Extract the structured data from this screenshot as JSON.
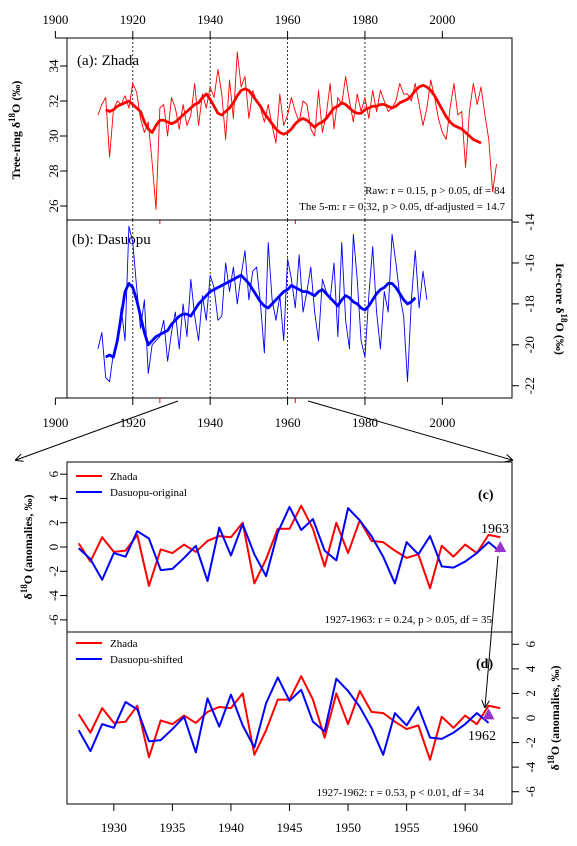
{
  "colors": {
    "zhada": "#ff0000",
    "dasuopu": "#0000ff",
    "marker": "#9933cc"
  },
  "top": {
    "x_ticks": [
      "1900",
      "1920",
      "1940",
      "1960",
      "1980",
      "2000"
    ],
    "x_range": [
      1903,
      2018
    ],
    "dotted_years": [
      1920,
      1940,
      1960,
      1980
    ],
    "red_ticks": [
      1927,
      1962
    ],
    "panel_a": {
      "label": "(a): Zhada",
      "ylabel_pre": "Tree-ring ",
      "ylabel_delta": "δ",
      "ylabel_sup": "18",
      "ylabel_post": "O (‰)",
      "y_ticks": [
        "26",
        "28",
        "30",
        "32",
        "34"
      ],
      "ylim": [
        25.2,
        35.6
      ],
      "stat1": "Raw:  r = 0.15, p > 0.05,  df = 84",
      "stat2": "The 5-m:  r = 0.32, p > 0.05,  df-adjusted = 14.7"
    },
    "panel_b": {
      "label": "(b): Dasuopu",
      "ylabel_pre": "Ice-core ",
      "ylabel_delta": "δ",
      "ylabel_sup": "18",
      "ylabel_post": "O (‰)",
      "y_ticks": [
        "-22",
        "-20",
        "-18",
        "-16",
        "-14"
      ],
      "ylim": [
        -22.6,
        -13.9
      ]
    }
  },
  "bottom": {
    "x_ticks": [
      "1930",
      "1935",
      "1940",
      "1945",
      "1950",
      "1955",
      "1960"
    ],
    "x_range": [
      1926,
      1964
    ],
    "y_ticks": [
      "-6",
      "-4",
      "-2",
      "0",
      "2",
      "4",
      "6"
    ],
    "ylim": [
      -7,
      7
    ],
    "ylabel_delta": "δ",
    "ylabel_sup": "18",
    "ylabel_post": "O (anomalies, ‰)",
    "panel_c": {
      "label": "(c)",
      "legend": [
        "Zhada",
        "Dasuopu-original"
      ],
      "marker_label": "1963",
      "stat": "1927-1963: r = 0.24, p > 0.05,  df = 35"
    },
    "panel_d": {
      "label": "(d)",
      "legend": [
        "Zhada",
        "Dasuopu-shifted"
      ],
      "marker_label": "1962",
      "stat": "1927-1962: r = 0.53, p < 0.01,  df = 34"
    }
  },
  "chart_data": [
    {
      "type": "line",
      "panel": "a",
      "x_start": 1911,
      "series": [
        {
          "name": "Zhada",
          "role": "raw",
          "values": [
            31.2,
            31.8,
            32.2,
            28.8,
            31.5,
            32.0,
            31.8,
            32.3,
            31.6,
            33.0,
            32.5,
            31.0,
            30.2,
            30.8,
            28.5,
            25.8,
            31.6,
            31.8,
            30.0,
            32.2,
            31.6,
            30.4,
            31.8,
            30.6,
            31.2,
            33.0,
            30.6,
            32.4,
            31.6,
            32.8,
            32.2,
            33.8,
            32.4,
            29.8,
            33.2,
            31.0,
            34.8,
            32.8,
            33.4,
            31.0,
            32.6,
            32.0,
            31.6,
            30.8,
            31.8,
            30.6,
            29.6,
            32.4,
            30.6,
            31.2,
            32.2,
            31.4,
            30.8,
            32.0,
            31.8,
            30.4,
            30.0,
            32.6,
            30.2,
            31.2,
            33.0,
            30.4,
            32.2,
            31.8,
            33.4,
            32.0,
            30.8,
            32.4,
            31.4,
            32.2,
            31.0,
            32.6,
            31.4,
            32.6,
            32.0,
            31.4,
            31.6,
            32.0,
            33.0,
            32.4,
            32.4,
            32.0,
            33.0,
            31.8,
            30.6,
            31.6,
            33.2,
            32.2,
            31.0,
            30.2,
            29.8,
            31.6,
            33.0,
            31.2,
            31.4,
            28.2,
            31.4,
            33.0,
            31.8,
            32.8,
            31.2,
            29.8,
            26.8,
            28.4
          ]
        },
        {
          "name": "Zhada",
          "role": "smooth",
          "values": [
            null,
            null,
            31.5,
            31.4,
            31.5,
            31.7,
            31.8,
            31.9,
            32.0,
            31.8,
            31.6,
            31.4,
            30.8,
            30.4,
            30.2,
            30.6,
            30.9,
            30.9,
            30.8,
            30.7,
            30.8,
            31.0,
            31.2,
            31.4,
            31.6,
            31.8,
            31.9,
            32.2,
            32.4,
            32.1,
            31.7,
            31.3,
            31.2,
            31.4,
            31.6,
            31.9,
            32.3,
            32.6,
            32.7,
            32.6,
            32.3,
            32.0,
            31.7,
            31.3,
            31.0,
            30.7,
            30.4,
            30.2,
            30.1,
            30.2,
            30.4,
            30.7,
            30.9,
            31.0,
            30.9,
            30.7,
            30.5,
            30.7,
            30.8,
            31.0,
            31.3,
            31.6,
            31.7,
            31.9,
            31.8,
            31.6,
            31.4,
            31.3,
            31.3,
            31.5,
            31.6,
            31.7,
            31.7,
            31.8,
            31.8,
            31.7,
            31.6,
            31.7,
            31.9,
            32.0,
            32.1,
            32.3,
            32.6,
            32.8,
            32.9,
            32.8,
            32.6,
            32.3,
            31.9,
            31.5,
            31.1,
            30.8,
            30.6,
            30.5,
            30.4,
            30.2,
            30.0,
            29.8,
            29.7,
            29.6,
            null,
            null,
            null,
            null
          ]
        }
      ]
    },
    {
      "type": "line",
      "panel": "b",
      "x_start": 1911,
      "series": [
        {
          "name": "Dasuopu",
          "role": "raw",
          "values": [
            -20.2,
            -19.4,
            -21.6,
            -21.8,
            -20.4,
            -19.8,
            -18.2,
            -19.8,
            -14.2,
            -15.0,
            -17.2,
            -19.2,
            -17.8,
            -21.4,
            -20.0,
            -19.8,
            -19.6,
            -18.8,
            -20.8,
            -19.4,
            -18.4,
            -20.2,
            -18.0,
            -19.6,
            -16.8,
            -18.6,
            -19.8,
            -17.6,
            -18.8,
            -16.6,
            -17.2,
            -18.8,
            -18.6,
            -16.0,
            -17.4,
            -16.2,
            -18.0,
            -16.6,
            -15.4,
            -17.8,
            -16.4,
            -16.2,
            -18.0,
            -20.4,
            -15.0,
            -17.8,
            -18.8,
            -17.6,
            -19.8,
            -15.8,
            -16.8,
            -18.2,
            -15.6,
            -18.4,
            -17.4,
            -16.2,
            -18.4,
            -19.8,
            -16.8,
            -17.4,
            -17.8,
            -16.0,
            -19.6,
            -15.0,
            -18.8,
            -20.2,
            -14.6,
            -16.8,
            -19.8,
            -20.6,
            -17.6,
            -15.2,
            -18.4,
            -20.2,
            -17.4,
            -18.4,
            -14.6,
            -16.0,
            -17.6,
            -18.6,
            -21.8,
            -17.8,
            -15.4,
            -18.2,
            -16.4,
            -17.8
          ]
        },
        {
          "name": "Dasuopu",
          "role": "smooth",
          "values": [
            null,
            null,
            -20.6,
            -20.5,
            -20.6,
            -19.8,
            -18.6,
            -17.4,
            -17.0,
            -17.2,
            -17.8,
            -18.6,
            -19.4,
            -20.0,
            -19.8,
            -19.6,
            -19.5,
            -19.4,
            -19.3,
            -19.0,
            -18.8,
            -18.6,
            -18.5,
            -18.5,
            -18.6,
            -18.3,
            -18.0,
            -17.8,
            -17.6,
            -17.4,
            -17.3,
            -17.2,
            -17.1,
            -17.0,
            -16.9,
            -16.8,
            -16.7,
            -16.6,
            -16.8,
            -17.0,
            -17.3,
            -17.6,
            -17.9,
            -18.1,
            -18.2,
            -18.0,
            -17.8,
            -17.6,
            -17.4,
            -17.3,
            -17.1,
            -17.2,
            -17.3,
            -17.4,
            -17.4,
            -17.5,
            -17.6,
            -17.4,
            -17.3,
            -17.5,
            -17.7,
            -17.9,
            -18.1,
            -17.8,
            -17.6,
            -17.7,
            -17.9,
            -18.0,
            -18.2,
            -18.3,
            -18.1,
            -17.8,
            -17.5,
            -17.3,
            -17.2,
            -17.0,
            -17.0,
            -17.2,
            -17.5,
            -17.8,
            -18.0,
            -17.9,
            -17.7,
            null,
            null,
            null
          ]
        }
      ]
    },
    {
      "type": "line",
      "panel": "c",
      "x": [
        1927,
        1928,
        1929,
        1930,
        1931,
        1932,
        1933,
        1934,
        1935,
        1936,
        1937,
        1938,
        1939,
        1940,
        1941,
        1942,
        1943,
        1944,
        1945,
        1946,
        1947,
        1948,
        1949,
        1950,
        1951,
        1952,
        1953,
        1954,
        1955,
        1956,
        1957,
        1958,
        1959,
        1960,
        1961,
        1962,
        1963
      ],
      "series": [
        {
          "name": "Zhada",
          "values": [
            0.3,
            -1.2,
            0.8,
            -0.4,
            -0.3,
            1.0,
            -3.2,
            -0.2,
            -0.5,
            0.2,
            -0.4,
            0.5,
            0.9,
            0.8,
            2.0,
            -3.0,
            -1.0,
            1.5,
            1.5,
            3.4,
            1.5,
            -1.6,
            2.0,
            -0.5,
            2.2,
            0.5,
            0.4,
            -0.3,
            -0.9,
            -0.6,
            -3.4,
            0.1,
            -0.8,
            0.2,
            -0.5,
            1.0,
            0.8
          ]
        },
        {
          "name": "Dasuopu-original",
          "values": [
            -0.1,
            -1.0,
            -2.7,
            -0.5,
            -0.8,
            1.3,
            0.7,
            -1.9,
            -1.8,
            -0.9,
            0.1,
            -2.8,
            1.6,
            -0.7,
            1.9,
            -0.6,
            -2.4,
            1.2,
            3.3,
            1.4,
            2.3,
            -0.3,
            -1.1,
            3.2,
            2.2,
            0.9,
            -0.8,
            -3.0,
            0.4,
            -0.6,
            0.9,
            -1.6,
            -1.7,
            -1.2,
            -0.5,
            0.4,
            -0.4
          ]
        }
      ],
      "marker": {
        "x": 1963,
        "y": 0.0
      }
    },
    {
      "type": "line",
      "panel": "d",
      "x": [
        1927,
        1928,
        1929,
        1930,
        1931,
        1932,
        1933,
        1934,
        1935,
        1936,
        1937,
        1938,
        1939,
        1940,
        1941,
        1942,
        1943,
        1944,
        1945,
        1946,
        1947,
        1948,
        1949,
        1950,
        1951,
        1952,
        1953,
        1954,
        1955,
        1956,
        1957,
        1958,
        1959,
        1960,
        1961,
        1962,
        1963
      ],
      "series": [
        {
          "name": "Zhada",
          "values": [
            0.3,
            -1.2,
            0.8,
            -0.4,
            -0.3,
            1.0,
            -3.2,
            -0.2,
            -0.5,
            0.2,
            -0.4,
            0.5,
            0.9,
            0.8,
            2.0,
            -3.0,
            -1.0,
            1.5,
            1.5,
            3.4,
            1.5,
            -1.6,
            2.0,
            -0.5,
            2.2,
            0.5,
            0.4,
            -0.3,
            -0.9,
            -0.6,
            -3.4,
            0.1,
            -0.8,
            0.2,
            -0.5,
            1.0,
            0.8
          ]
        },
        {
          "name": "Dasuopu-shifted",
          "values": [
            -1.0,
            -2.7,
            -0.5,
            -0.8,
            1.3,
            0.7,
            -1.9,
            -1.8,
            -0.9,
            0.1,
            -2.8,
            1.6,
            -0.7,
            1.9,
            -0.6,
            -2.4,
            1.2,
            3.3,
            1.4,
            2.3,
            -0.3,
            -1.1,
            3.2,
            2.2,
            0.9,
            -0.8,
            -3.0,
            0.4,
            -0.6,
            0.9,
            -1.6,
            -1.7,
            -1.2,
            -0.5,
            0.4,
            -0.4,
            null
          ]
        }
      ],
      "marker": {
        "x": 1962,
        "y": 0.3
      }
    }
  ]
}
